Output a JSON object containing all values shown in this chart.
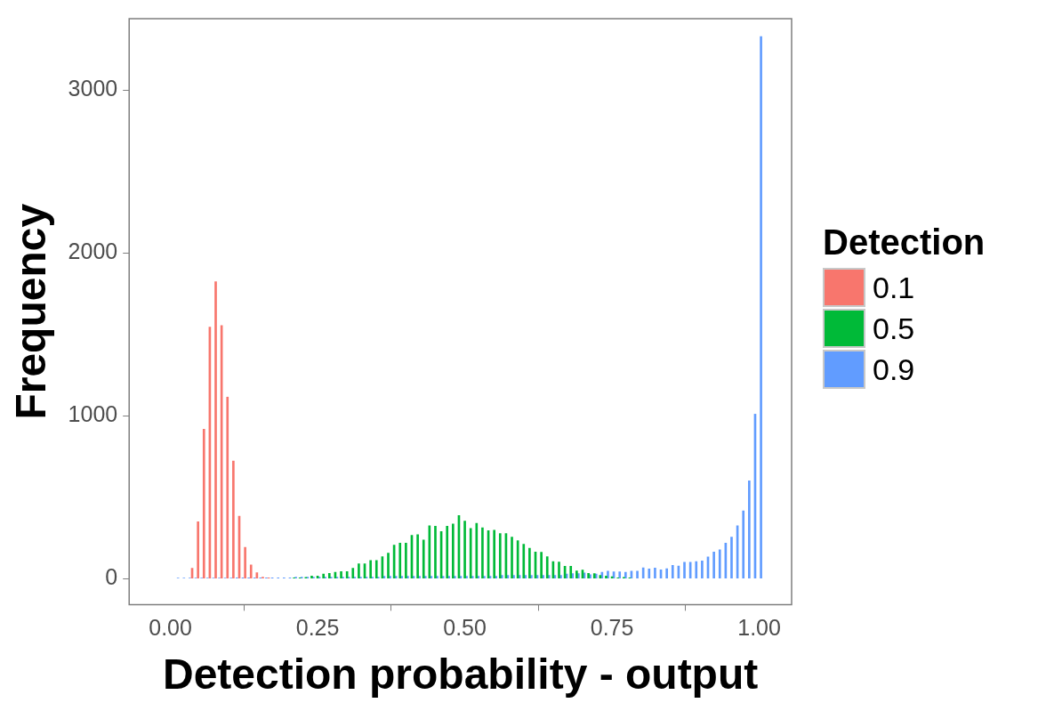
{
  "chart_data": {
    "type": "bar",
    "xlabel": "Detection probability - output",
    "ylabel": "Frequency",
    "legend_title": "Detection",
    "legend": "right",
    "grid": false,
    "xlim": [
      -0.07,
      1.055
    ],
    "ylim": [
      -160,
      3440
    ],
    "xticks": [
      {
        "value": 0,
        "label": "0.00"
      },
      {
        "value": 0.25,
        "label": "0.25"
      },
      {
        "value": 0.5,
        "label": "0.50"
      },
      {
        "value": 0.75,
        "label": "0.75"
      },
      {
        "value": 1,
        "label": "1.00"
      }
    ],
    "yticks": [
      0,
      1000,
      2000,
      3000
    ],
    "series": [
      {
        "name": "0.1",
        "color": "#f8766d",
        "x": [
          0.04,
          0.05,
          0.06,
          0.07,
          0.08,
          0.09,
          0.1,
          0.11,
          0.12,
          0.13,
          0.14,
          0.15,
          0.16,
          0.17
        ],
        "values": [
          63,
          349,
          917,
          1545,
          1824,
          1554,
          1115,
          722,
          383,
          192,
          84,
          36,
          9,
          5
        ]
      },
      {
        "name": "0.5",
        "color": "#00ba38",
        "x": [
          0.21,
          0.22,
          0.23,
          0.24,
          0.25,
          0.26,
          0.27,
          0.28,
          0.29,
          0.3,
          0.31,
          0.32,
          0.33,
          0.34,
          0.35,
          0.36,
          0.37,
          0.38,
          0.39,
          0.4,
          0.41,
          0.42,
          0.43,
          0.44,
          0.45,
          0.46,
          0.47,
          0.48,
          0.49,
          0.5,
          0.51,
          0.52,
          0.53,
          0.54,
          0.55,
          0.56,
          0.57,
          0.58,
          0.59,
          0.6,
          0.61,
          0.62,
          0.63,
          0.64,
          0.65,
          0.66,
          0.67,
          0.68,
          0.69,
          0.7,
          0.71,
          0.72,
          0.73,
          0.74,
          0.75,
          0.76,
          0.77,
          0.78
        ],
        "values": [
          4,
          5,
          7,
          16,
          16,
          27,
          32,
          39,
          43,
          43,
          63,
          90,
          90,
          111,
          111,
          134,
          156,
          206,
          217,
          217,
          265,
          269,
          237,
          324,
          321,
          289,
          321,
          335,
          387,
          353,
          308,
          339,
          312,
          294,
          297,
          276,
          276,
          254,
          233,
          211,
          186,
          163,
          161,
          134,
          104,
          102,
          75,
          75,
          47,
          52,
          32,
          30,
          20,
          16,
          11,
          5,
          7,
          4
        ]
      },
      {
        "name": "0.9",
        "color": "#619cff",
        "x": [
          0.01,
          0.02,
          0.03,
          0.04,
          0.05,
          0.06,
          0.07,
          0.08,
          0.09,
          0.1,
          0.11,
          0.12,
          0.13,
          0.14,
          0.15,
          0.16,
          0.17,
          0.18,
          0.19,
          0.2,
          0.21,
          0.22,
          0.23,
          0.24,
          0.25,
          0.26,
          0.27,
          0.28,
          0.29,
          0.3,
          0.31,
          0.32,
          0.33,
          0.34,
          0.35,
          0.36,
          0.37,
          0.38,
          0.39,
          0.4,
          0.41,
          0.42,
          0.43,
          0.44,
          0.45,
          0.46,
          0.47,
          0.48,
          0.49,
          0.5,
          0.51,
          0.52,
          0.53,
          0.54,
          0.55,
          0.56,
          0.57,
          0.58,
          0.59,
          0.6,
          0.61,
          0.62,
          0.63,
          0.64,
          0.65,
          0.66,
          0.67,
          0.68,
          0.69,
          0.7,
          0.71,
          0.72,
          0.73,
          0.74,
          0.75,
          0.76,
          0.77,
          0.78,
          0.79,
          0.8,
          0.81,
          0.82,
          0.83,
          0.84,
          0.85,
          0.86,
          0.87,
          0.88,
          0.89,
          0.9,
          0.91,
          0.92,
          0.93,
          0.94,
          0.95,
          0.96,
          0.97,
          0.98,
          0.99,
          1
        ],
        "values": [
          3,
          3,
          3,
          3,
          3,
          3,
          3,
          3,
          3,
          3,
          5,
          5,
          5,
          5,
          5,
          5,
          5,
          5,
          5,
          5,
          8,
          8,
          8,
          8,
          8,
          8,
          8,
          8,
          8,
          8,
          8,
          8,
          8,
          8,
          8,
          14,
          14,
          14,
          14,
          14,
          14,
          14,
          14,
          14,
          14,
          14,
          14,
          14,
          14,
          14,
          14,
          14,
          14,
          14,
          14,
          20,
          20,
          20,
          20,
          20,
          20,
          20,
          20,
          20,
          20,
          20,
          27,
          30,
          30,
          34,
          23,
          27,
          38,
          45,
          41,
          41,
          38,
          45,
          45,
          66,
          59,
          65,
          54,
          61,
          81,
          77,
          100,
          100,
          104,
          108,
          133,
          163,
          176,
          217,
          254,
          324,
          416,
          600,
          1010,
          3330
        ]
      }
    ]
  }
}
